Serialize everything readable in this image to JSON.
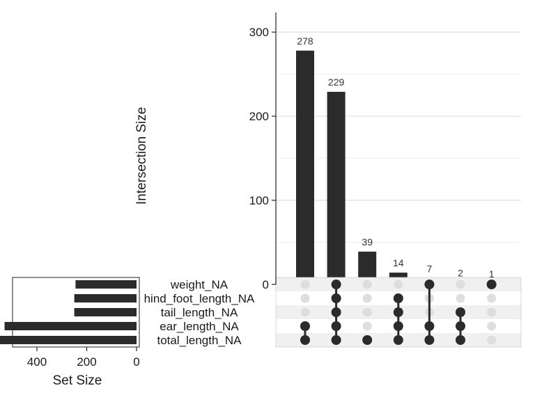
{
  "chart_data": {
    "type": "bar",
    "upset": true,
    "intersections": {
      "ylabel": "Intersection Size",
      "yticks": [
        0,
        100,
        200,
        300
      ],
      "ylim": [
        0,
        320
      ],
      "grid": true,
      "values": [
        278,
        229,
        39,
        14,
        7,
        2,
        1
      ],
      "labels": [
        "278",
        "229",
        "39",
        "14",
        "7",
        "2",
        "1"
      ]
    },
    "sets": {
      "names": [
        "weight_NA",
        "hind_foot_length_NA",
        "tail_length_NA",
        "ear_length_NA",
        "total_length_NA"
      ],
      "sizes": [
        245,
        250,
        250,
        530,
        570
      ],
      "xlabel": "Set Size",
      "xticks": [
        400,
        200,
        0
      ],
      "xlim": [
        600,
        0
      ]
    },
    "matrix": [
      [
        false,
        false,
        false,
        true,
        true
      ],
      [
        true,
        true,
        true,
        true,
        true
      ],
      [
        false,
        false,
        false,
        false,
        true
      ],
      [
        false,
        true,
        true,
        true,
        true
      ],
      [
        true,
        false,
        false,
        true,
        true
      ],
      [
        false,
        false,
        true,
        true,
        true
      ],
      [
        true,
        false,
        false,
        false,
        false
      ]
    ],
    "colors": {
      "bar": "#2b2b2b",
      "dot_active": "#2b2b2b",
      "dot_inactive": "#dedede",
      "stripe": "#f0f0f0",
      "grid": "#e6e6e6"
    }
  }
}
